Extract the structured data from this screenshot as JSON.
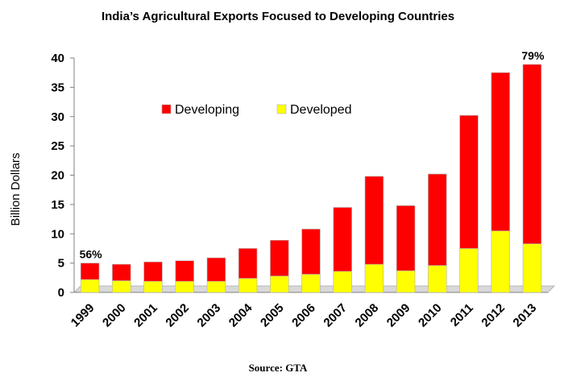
{
  "chart_data": {
    "type": "bar",
    "stacked": true,
    "title": "India’s Agricultural Exports Focused to Developing Countries",
    "ylabel": "Billion Dollars",
    "xlabel": "",
    "ylim": [
      0,
      40
    ],
    "yticks": [
      0,
      5,
      10,
      15,
      20,
      25,
      30,
      35,
      40
    ],
    "categories": [
      "1999",
      "2000",
      "2001",
      "2002",
      "2003",
      "2004",
      "2005",
      "2006",
      "2007",
      "2008",
      "2009",
      "2010",
      "2011",
      "2012",
      "2013"
    ],
    "series": [
      {
        "name": "Developed",
        "color": "#ffff00",
        "values": [
          2.2,
          2.0,
          1.9,
          1.9,
          1.9,
          2.4,
          2.8,
          3.1,
          3.6,
          4.8,
          3.7,
          4.6,
          7.5,
          10.5,
          8.3
        ]
      },
      {
        "name": "Developing",
        "color": "#ff0000",
        "values": [
          2.8,
          2.8,
          3.3,
          3.5,
          4.0,
          5.1,
          6.1,
          7.7,
          10.9,
          15.0,
          11.1,
          15.6,
          22.7,
          27.0,
          30.6
        ]
      }
    ],
    "legend": {
      "placement": "top-center",
      "order": [
        "Developing",
        "Developed"
      ]
    },
    "annotations": [
      {
        "category": "1999",
        "text": "56%"
      },
      {
        "category": "2013",
        "text": "79%"
      }
    ],
    "source": "Source:  GTA",
    "grid": false
  }
}
